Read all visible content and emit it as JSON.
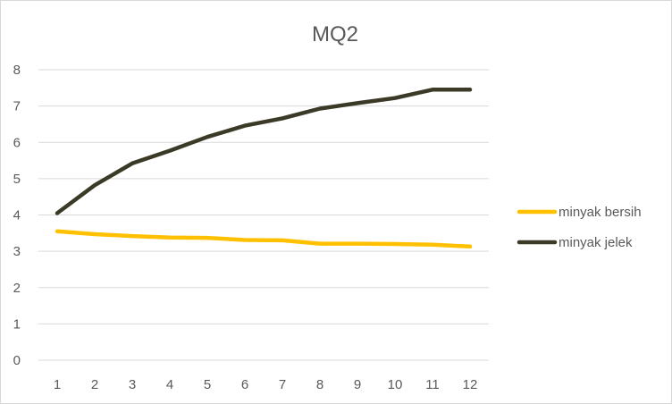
{
  "chart_data": {
    "type": "line",
    "title": "MQ2",
    "xlabel": "",
    "ylabel": "",
    "categories": [
      "1",
      "2",
      "3",
      "4",
      "5",
      "6",
      "7",
      "8",
      "9",
      "10",
      "11",
      "12"
    ],
    "ylim": [
      0,
      8
    ],
    "yticks": [
      "0",
      "1",
      "2",
      "3",
      "4",
      "5",
      "6",
      "7",
      "8"
    ],
    "grid": true,
    "legend_position": "right",
    "series": [
      {
        "name": "minyak bersih",
        "color": "#FFC000",
        "values": [
          3.55,
          3.47,
          3.42,
          3.38,
          3.37,
          3.31,
          3.3,
          3.21,
          3.21,
          3.2,
          3.18,
          3.13
        ]
      },
      {
        "name": "minyak jelek",
        "color": "#3B3A27",
        "values": [
          4.05,
          4.82,
          5.42,
          5.77,
          6.15,
          6.46,
          6.66,
          6.93,
          7.08,
          7.22,
          7.45,
          7.45
        ]
      }
    ]
  }
}
